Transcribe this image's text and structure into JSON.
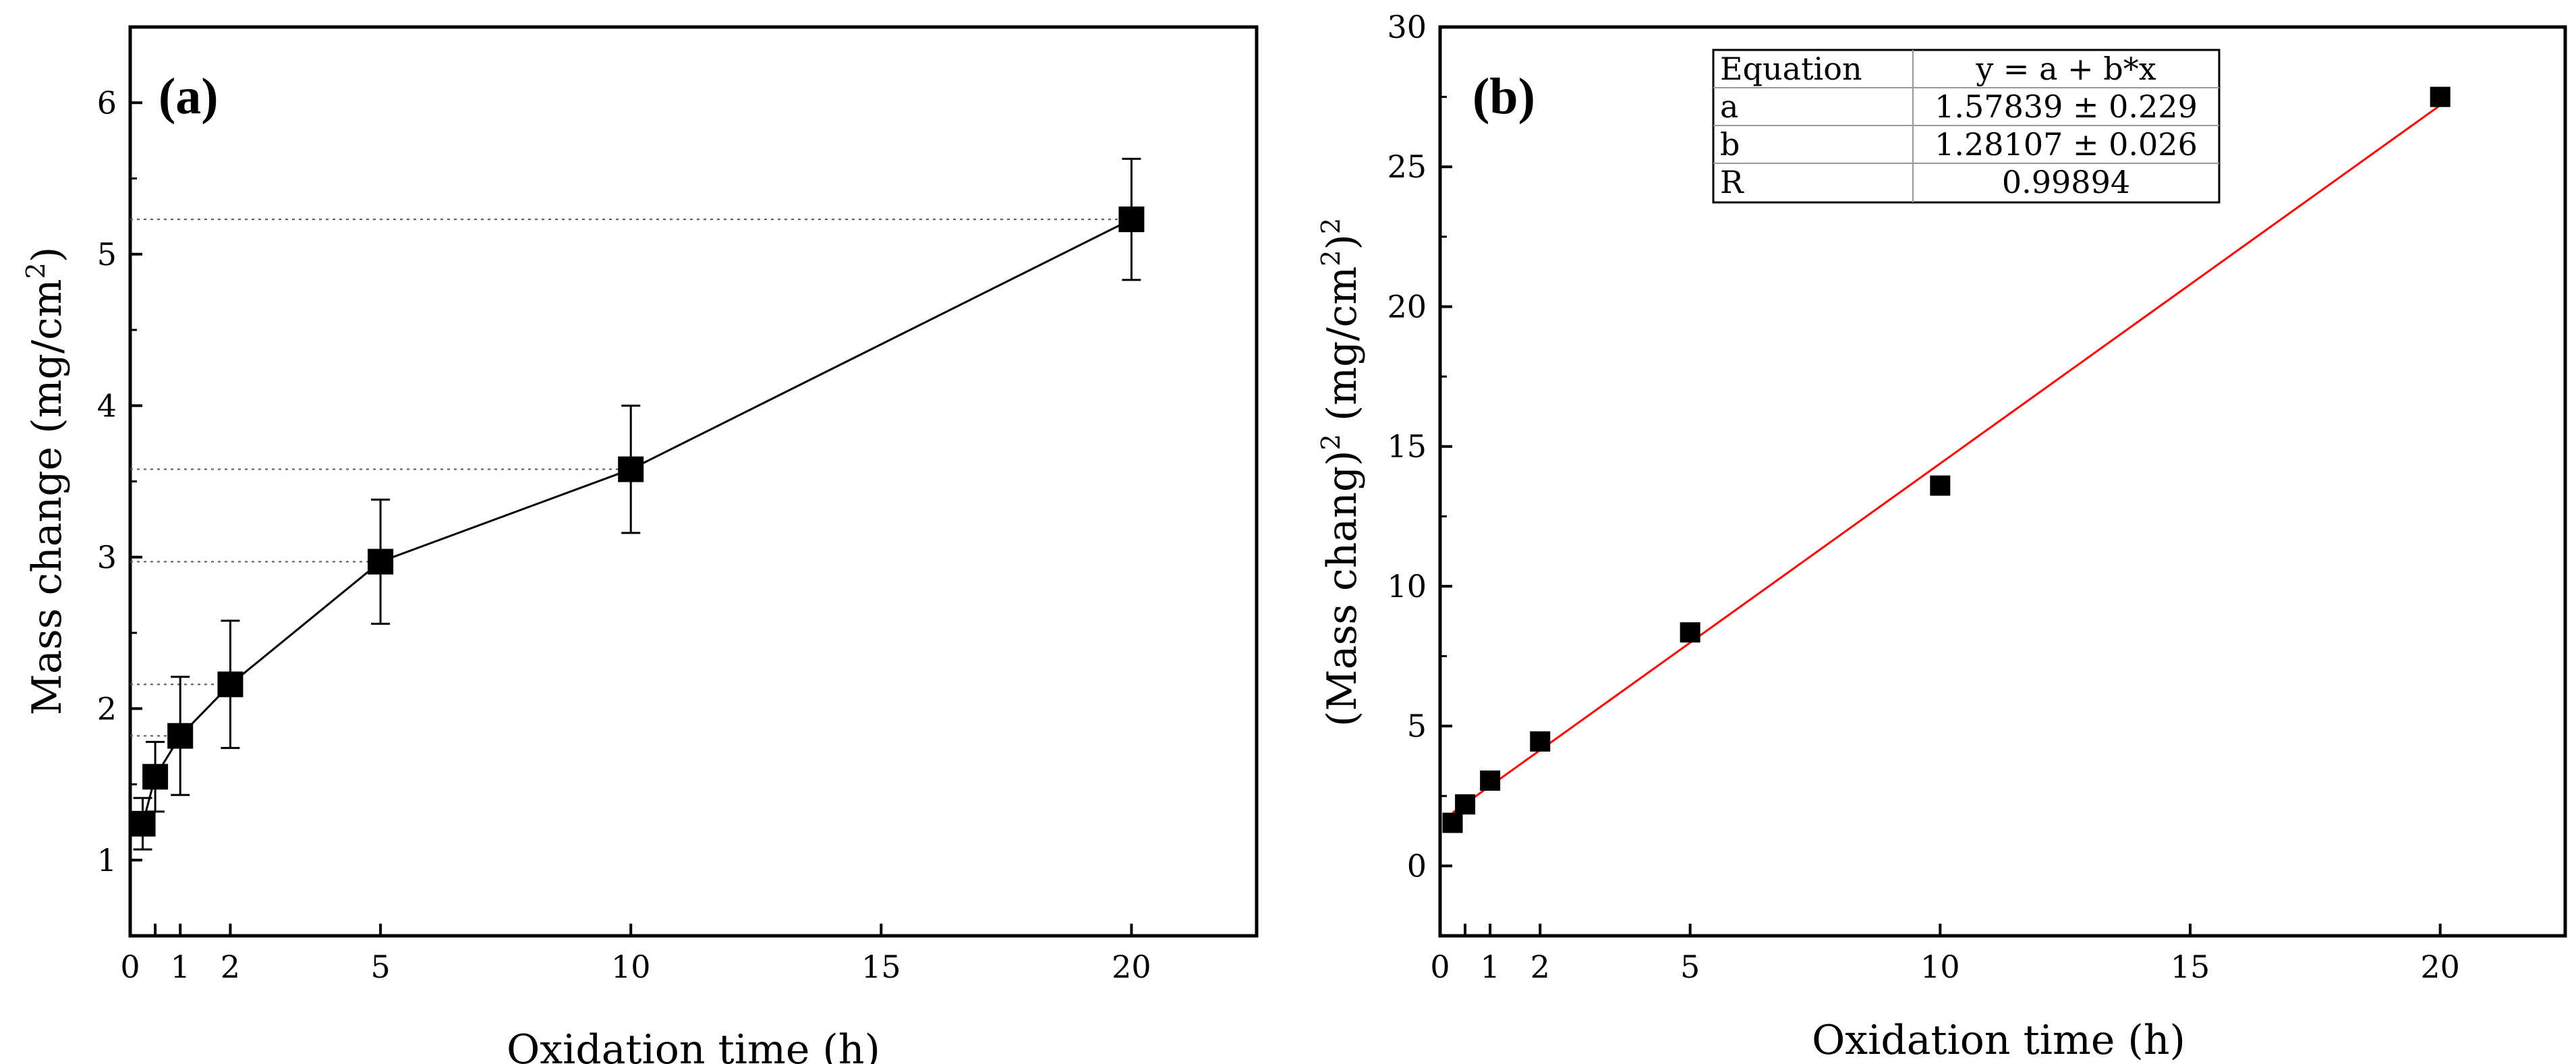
{
  "chart_data": [
    {
      "type": "line",
      "panel_label": "(a)",
      "xlabel": "Oxidation time (h)",
      "ylabel_main": "Mass change (mg/cm",
      "ylabel_sup": "2",
      "ylabel_end": ")",
      "xlim": [
        0,
        22.5
      ],
      "ylim": [
        0.5,
        6.5
      ],
      "xticks": [
        0,
        0.5,
        1,
        2,
        5,
        10,
        15,
        20
      ],
      "xtick_labels": [
        "0",
        "",
        "1",
        "2",
        "5",
        "10",
        "15",
        "20"
      ],
      "yticks": [
        1,
        2,
        3,
        4,
        5,
        6
      ],
      "ytick_labels": [
        "1",
        "2",
        "3",
        "4",
        "5",
        "6"
      ],
      "series": [
        {
          "name": "Mass change",
          "x": [
            0.25,
            0.5,
            1,
            2,
            5,
            10,
            20
          ],
          "y": [
            1.24,
            1.55,
            1.82,
            2.16,
            2.97,
            3.58,
            5.23
          ],
          "err": [
            0.17,
            0.23,
            0.39,
            0.42,
            0.41,
            0.42,
            0.4
          ]
        }
      ],
      "reference_lines": [
        1.31,
        1.82,
        2.16,
        2.97,
        3.58,
        5.23
      ],
      "line_color": "#000000",
      "marker": "square"
    },
    {
      "type": "scatter",
      "panel_label": "(b)",
      "xlabel": "Oxidation time (h)",
      "ylabel_parts": [
        "(Mass chang)",
        "2",
        " (mg/cm",
        "2",
        ")",
        "2"
      ],
      "xlim": [
        0,
        22.5
      ],
      "ylim": [
        -2.5,
        30
      ],
      "xticks": [
        0,
        0.5,
        1,
        2,
        5,
        10,
        15,
        20
      ],
      "xtick_labels": [
        "0",
        "",
        "1",
        "2",
        "5",
        "10",
        "15",
        "20"
      ],
      "yticks": [
        0,
        5,
        10,
        15,
        20,
        25,
        30
      ],
      "ytick_labels": [
        "0",
        "5",
        "10",
        "15",
        "20",
        "25",
        "30"
      ],
      "series": [
        {
          "name": "(Mass change)^2",
          "x": [
            0.25,
            0.5,
            1,
            2,
            5,
            10,
            20
          ],
          "y": [
            1.54,
            2.2,
            3.05,
            4.45,
            8.35,
            13.6,
            27.5
          ]
        }
      ],
      "fit": {
        "a": 1.57839,
        "b": 1.28107,
        "x_range": [
          0.25,
          20
        ],
        "color": "#ff0000"
      },
      "fit_table": {
        "header": [
          "Equation",
          "y = a + b*x"
        ],
        "rows": [
          [
            "a",
            "1.57839 ± 0.229"
          ],
          [
            "b",
            "1.28107 ± 0.026"
          ],
          [
            "R",
            "0.99894"
          ]
        ]
      }
    }
  ]
}
